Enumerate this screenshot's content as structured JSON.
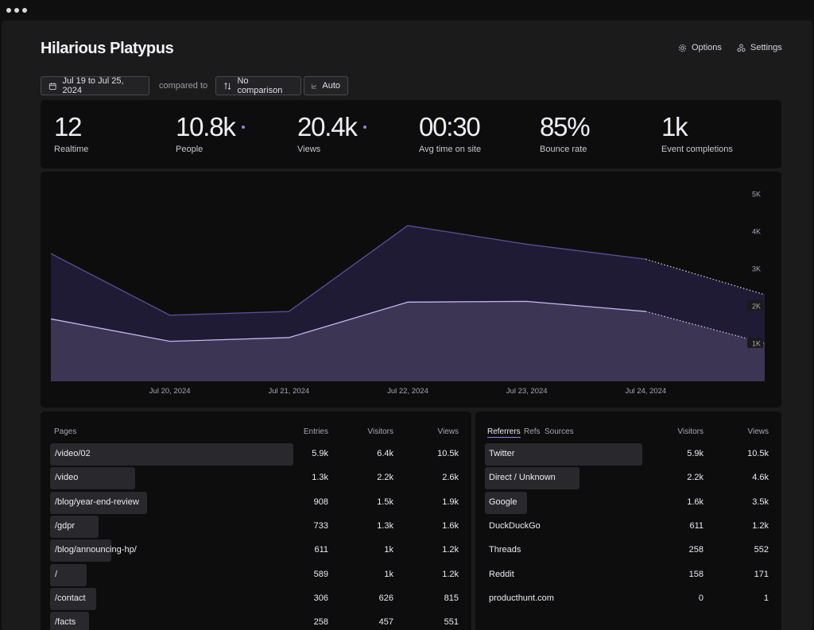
{
  "header": {
    "site_name": "Hilarious Platypus",
    "options_label": "Options",
    "settings_label": "Settings"
  },
  "toolbar": {
    "date_range": "Jul 19 to Jul 25, 2024",
    "compared_to": "compared to",
    "comparison": "No comparison",
    "granularity": "Auto"
  },
  "stats": [
    {
      "value": "12",
      "label": "Realtime",
      "indicator": false
    },
    {
      "value": "10.8k",
      "label": "People",
      "indicator": true
    },
    {
      "value": "20.4k",
      "label": "Views",
      "indicator": true
    },
    {
      "value": "00:30",
      "label": "Avg time on site",
      "indicator": false
    },
    {
      "value": "85%",
      "label": "Bounce rate",
      "indicator": false
    },
    {
      "value": "1k",
      "label": "Event completions",
      "indicator": false
    }
  ],
  "chart_data": {
    "type": "area",
    "x": [
      "Jul 19, 2024",
      "Jul 20, 2024",
      "Jul 21, 2024",
      "Jul 22, 2024",
      "Jul 23, 2024",
      "Jul 24, 2024",
      "Jul 25, 2024"
    ],
    "x_tick_labels": [
      "Jul 20, 2024",
      "Jul 21, 2024",
      "Jul 22, 2024",
      "Jul 23, 2024",
      "Jul 24, 2024"
    ],
    "y_tick_labels": [
      "5K",
      "4K",
      "3K",
      "2K",
      "1K"
    ],
    "ylim": [
      0,
      5000
    ],
    "series": [
      {
        "values": [
          3400,
          1750,
          1850,
          4150,
          3650,
          3250,
          2300
        ],
        "color": "#1f1b35",
        "line_color": "#5a4f9a"
      },
      {
        "values": [
          1650,
          1050,
          1150,
          2100,
          2120,
          1850,
          1000
        ],
        "color": "#3d3554",
        "line_color": "#c3b8f2"
      }
    ],
    "partial_from_index": 5,
    "grid": false
  },
  "pages": {
    "headers": [
      "Pages",
      "Entries",
      "Visitors",
      "Views"
    ],
    "rows": [
      {
        "name": "/video/02",
        "entries": "5.9k",
        "visitors": "6.4k",
        "views": "10.5k",
        "share": 1.0
      },
      {
        "name": "/video",
        "entries": "1.3k",
        "visitors": "2.2k",
        "views": "2.6k",
        "share": 0.35
      },
      {
        "name": "/blog/year-end-review",
        "entries": "908",
        "visitors": "1.5k",
        "views": "1.9k",
        "share": 0.4
      },
      {
        "name": "/gdpr",
        "entries": "733",
        "visitors": "1.3k",
        "views": "1.6k",
        "share": 0.2
      },
      {
        "name": "/blog/announcing-hp/",
        "entries": "611",
        "visitors": "1k",
        "views": "1.2k",
        "share": 0.25
      },
      {
        "name": "/",
        "entries": "589",
        "visitors": "1k",
        "views": "1.2k",
        "share": 0.15
      },
      {
        "name": "/contact",
        "entries": "306",
        "visitors": "626",
        "views": "815",
        "share": 0.19
      },
      {
        "name": "/facts",
        "entries": "258",
        "visitors": "457",
        "views": "551",
        "share": 0.16
      }
    ]
  },
  "referrers": {
    "tabs": [
      "Referrers",
      "Refs",
      "Sources"
    ],
    "active_tab": "Referrers",
    "headers": [
      "Visitors",
      "Views"
    ],
    "rows": [
      {
        "name": "Twitter",
        "visitors": "5.9k",
        "views": "10.5k",
        "share": 1.0
      },
      {
        "name": "Direct / Unknown",
        "visitors": "2.2k",
        "views": "4.6k",
        "share": 0.6
      },
      {
        "name": "Google",
        "visitors": "1.6k",
        "views": "3.5k",
        "share": 0.27
      },
      {
        "name": "DuckDuckGo",
        "visitors": "611",
        "views": "1.2k",
        "share": 0.0
      },
      {
        "name": "Threads",
        "visitors": "258",
        "views": "552",
        "share": 0.0
      },
      {
        "name": "Reddit",
        "visitors": "158",
        "views": "171",
        "share": 0.0
      },
      {
        "name": "producthunt.com",
        "visitors": "0",
        "views": "1",
        "share": 0.0
      }
    ]
  },
  "colors": {
    "accent": "#8f85e6",
    "panel": "#0d0d0e",
    "background": "#1b1b1c"
  },
  "icons": {
    "options": "gear-icon",
    "settings": "settings-nodes-icon",
    "date": "calendar-icon",
    "comparison": "compare-arrows-icon",
    "granularity": "line-chart-icon"
  }
}
